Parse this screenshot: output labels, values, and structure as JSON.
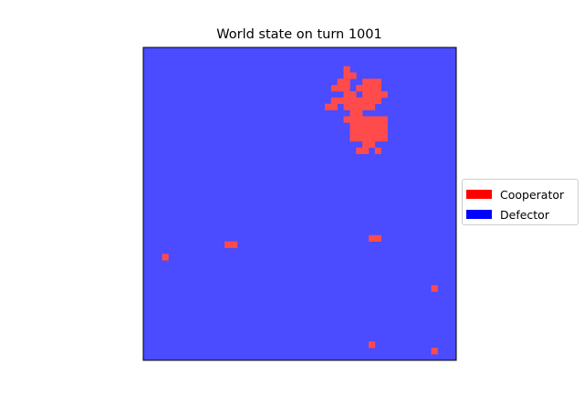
{
  "chart_data": {
    "type": "heatmap",
    "title": "World state on turn 1001",
    "grid_size": [
      50,
      50
    ],
    "legend": {
      "placement": "right",
      "entries": [
        {
          "label": "Cooperator",
          "color": "#ff0000"
        },
        {
          "label": "Defector",
          "color": "#0000ff"
        }
      ]
    },
    "cell_colors": {
      "cooperator": "#ff4b4b",
      "defector": "#4b4bff"
    },
    "background_state": "Defector",
    "cooperator_cells": [
      [
        32,
        3
      ],
      [
        32,
        4
      ],
      [
        33,
        4
      ],
      [
        31,
        5
      ],
      [
        32,
        5
      ],
      [
        35,
        5
      ],
      [
        36,
        5
      ],
      [
        37,
        5
      ],
      [
        30,
        6
      ],
      [
        31,
        6
      ],
      [
        32,
        6
      ],
      [
        34,
        6
      ],
      [
        35,
        6
      ],
      [
        36,
        6
      ],
      [
        37,
        6
      ],
      [
        32,
        7
      ],
      [
        33,
        7
      ],
      [
        35,
        7
      ],
      [
        36,
        7
      ],
      [
        37,
        7
      ],
      [
        38,
        7
      ],
      [
        30,
        8
      ],
      [
        31,
        8
      ],
      [
        32,
        8
      ],
      [
        33,
        8
      ],
      [
        34,
        8
      ],
      [
        35,
        8
      ],
      [
        36,
        8
      ],
      [
        37,
        8
      ],
      [
        29,
        9
      ],
      [
        30,
        9
      ],
      [
        32,
        9
      ],
      [
        33,
        9
      ],
      [
        34,
        9
      ],
      [
        35,
        9
      ],
      [
        36,
        9
      ],
      [
        33,
        10
      ],
      [
        34,
        10
      ],
      [
        32,
        11
      ],
      [
        33,
        11
      ],
      [
        34,
        11
      ],
      [
        35,
        11
      ],
      [
        36,
        11
      ],
      [
        37,
        11
      ],
      [
        38,
        11
      ],
      [
        33,
        12
      ],
      [
        34,
        12
      ],
      [
        35,
        12
      ],
      [
        36,
        12
      ],
      [
        37,
        12
      ],
      [
        38,
        12
      ],
      [
        33,
        13
      ],
      [
        34,
        13
      ],
      [
        35,
        13
      ],
      [
        36,
        13
      ],
      [
        37,
        13
      ],
      [
        38,
        13
      ],
      [
        33,
        14
      ],
      [
        34,
        14
      ],
      [
        35,
        14
      ],
      [
        36,
        14
      ],
      [
        37,
        14
      ],
      [
        38,
        14
      ],
      [
        35,
        15
      ],
      [
        36,
        15
      ],
      [
        34,
        16
      ],
      [
        35,
        16
      ],
      [
        37,
        16
      ],
      [
        36,
        30
      ],
      [
        37,
        30
      ],
      [
        13,
        31
      ],
      [
        14,
        31
      ],
      [
        3,
        33
      ],
      [
        46,
        38
      ],
      [
        36,
        47
      ],
      [
        46,
        48
      ]
    ]
  }
}
